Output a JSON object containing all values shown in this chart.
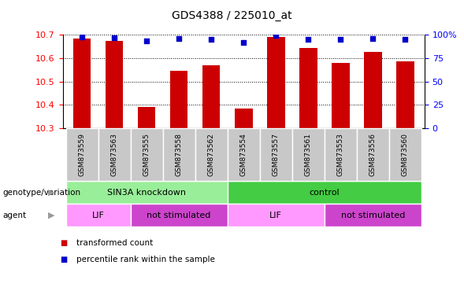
{
  "title": "GDS4388 / 225010_at",
  "samples": [
    "GSM873559",
    "GSM873563",
    "GSM873555",
    "GSM873558",
    "GSM873562",
    "GSM873554",
    "GSM873557",
    "GSM873561",
    "GSM873553",
    "GSM873556",
    "GSM873560"
  ],
  "bar_values": [
    10.685,
    10.675,
    10.39,
    10.545,
    10.57,
    10.385,
    10.69,
    10.645,
    10.578,
    10.625,
    10.585
  ],
  "percentile_values": [
    98,
    97,
    93,
    96,
    95,
    92,
    99,
    95,
    95,
    96,
    95
  ],
  "ymin": 10.3,
  "ymax": 10.7,
  "yticks": [
    10.3,
    10.4,
    10.5,
    10.6,
    10.7
  ],
  "y2ticks": [
    0,
    25,
    50,
    75,
    100
  ],
  "bar_color": "#cc0000",
  "dot_color": "#0000cc",
  "plot_bg": "#ffffff",
  "sample_box_color": "#c8c8c8",
  "groups": [
    {
      "label": "SIN3A knockdown",
      "start": 0,
      "end": 5,
      "color": "#99ee99"
    },
    {
      "label": "control",
      "start": 5,
      "end": 11,
      "color": "#44cc44"
    }
  ],
  "agents": [
    {
      "label": "LIF",
      "start": 0,
      "end": 2,
      "color": "#ff99ff"
    },
    {
      "label": "not stimulated",
      "start": 2,
      "end": 5,
      "color": "#cc44cc"
    },
    {
      "label": "LIF",
      "start": 5,
      "end": 8,
      "color": "#ff99ff"
    },
    {
      "label": "not stimulated",
      "start": 8,
      "end": 11,
      "color": "#cc44cc"
    }
  ],
  "genotype_label": "genotype/variation",
  "agent_label": "agent",
  "legend_items": [
    {
      "color": "#cc0000",
      "label": "transformed count"
    },
    {
      "color": "#0000cc",
      "label": "percentile rank within the sample"
    }
  ],
  "arrow_color": "#999999"
}
